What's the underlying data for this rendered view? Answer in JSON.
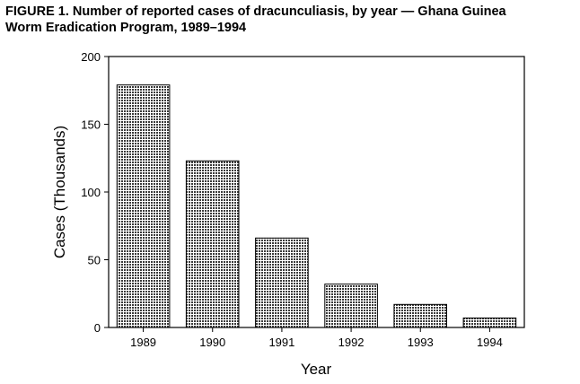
{
  "figure": {
    "title_line1": "FIGURE 1. Number of reported cases of dracunculiasis, by year — Ghana Guinea",
    "title_line2": "Worm Eradication Program, 1989–1994"
  },
  "chart_data": {
    "type": "bar",
    "title": "Number of reported cases of dracunculiasis, by year — Ghana Guinea Worm Eradication Program, 1989–1994",
    "xlabel": "Year",
    "ylabel": "Cases (Thousands)",
    "categories": [
      "1989",
      "1990",
      "1991",
      "1992",
      "1993",
      "1994"
    ],
    "values": [
      179,
      123,
      66,
      32,
      17,
      7
    ],
    "ylim": [
      0,
      200
    ],
    "yticks": [
      0,
      50,
      100,
      150,
      200
    ],
    "grid": false,
    "legend": "none",
    "bar_fill": "#555555"
  }
}
